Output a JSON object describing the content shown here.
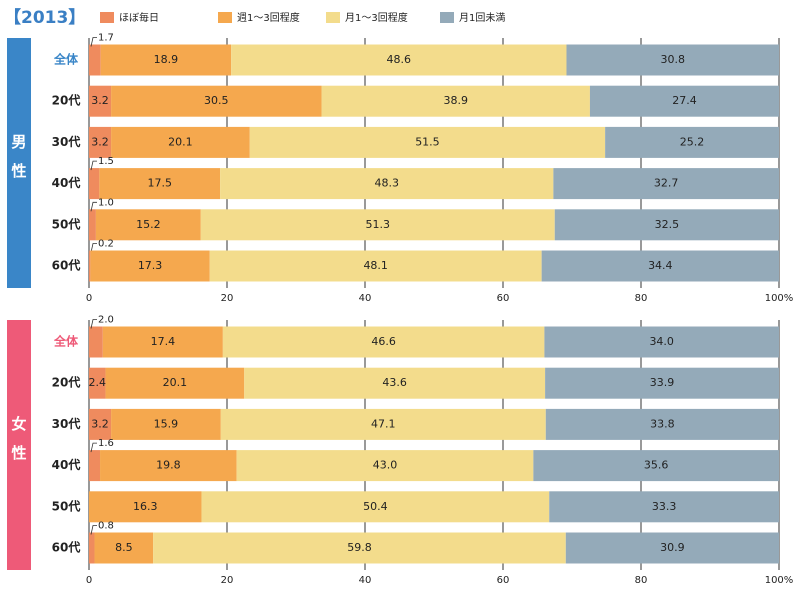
{
  "title": "【2013】",
  "chart_data": [
    {
      "type": "stacked-bar",
      "group_label": "男性",
      "accent_color": "#3a86c8",
      "categories": [
        "全体",
        "20代",
        "30代",
        "40代",
        "50代",
        "60代"
      ],
      "series": [
        {
          "name": "ほぼ毎日",
          "color": "#ef8b5e",
          "values": [
            1.7,
            3.2,
            3.2,
            1.5,
            1.0,
            0.2
          ],
          "value_labels": [
            "1.7",
            "3.2",
            "3.2",
            "1.5",
            "1.0",
            "0.2"
          ]
        },
        {
          "name": "週1～3回程度",
          "color": "#f5a84e",
          "values": [
            18.9,
            30.5,
            20.1,
            17.5,
            15.2,
            17.3
          ],
          "value_labels": [
            "18.9",
            "30.5",
            "20.1",
            "17.5",
            "15.2",
            "17.3"
          ]
        },
        {
          "name": "月1～3回程度",
          "color": "#f3dc8c",
          "values": [
            48.6,
            38.9,
            51.5,
            48.3,
            51.3,
            48.1
          ],
          "value_labels": [
            "48.6",
            "38.9",
            "51.5",
            "48.3",
            "51.3",
            "48.1"
          ]
        },
        {
          "name": "月1回未満",
          "color": "#94aab9",
          "values": [
            30.8,
            27.4,
            25.2,
            32.7,
            32.5,
            34.4
          ],
          "value_labels": [
            "30.8",
            "27.4",
            "25.2",
            "32.7",
            "32.5",
            "34.4"
          ]
        }
      ],
      "xlim": [
        0,
        100
      ],
      "xticks": [
        0,
        20,
        40,
        60,
        80,
        {
          "value": 100,
          "label": "100%"
        }
      ],
      "grid": true
    },
    {
      "type": "stacked-bar",
      "group_label": "女性",
      "accent_color": "#ee5a78",
      "categories": [
        "全体",
        "20代",
        "30代",
        "40代",
        "50代",
        "60代"
      ],
      "series": [
        {
          "color": "#ef8b5e",
          "values": [
            2.0,
            2.4,
            3.2,
            1.6,
            0,
            0.8
          ],
          "value_labels": [
            "2.0",
            "2.4",
            "3.2",
            "1.6",
            null,
            "0.8"
          ]
        },
        {
          "color": "#f5a84e",
          "values": [
            17.4,
            20.1,
            15.9,
            19.8,
            16.3,
            8.5
          ],
          "value_labels": [
            "17.4",
            "20.1",
            "15.9",
            "19.8",
            "16.3",
            "8.5"
          ]
        },
        {
          "color": "#f3dc8c",
          "values": [
            46.6,
            43.6,
            47.1,
            43.0,
            50.4,
            59.8
          ],
          "value_labels": [
            "46.6",
            "43.6",
            "47.1",
            "43.0",
            "50.4",
            "59.8"
          ]
        },
        {
          "color": "#94aab9",
          "values": [
            34.0,
            33.9,
            33.8,
            35.6,
            33.3,
            30.9
          ],
          "value_labels": [
            "34.0",
            "33.9",
            "33.8",
            "35.6",
            "33.3",
            "30.9"
          ]
        }
      ],
      "xlim": [
        0,
        100
      ],
      "xticks": [
        0,
        20,
        40,
        60,
        80,
        {
          "value": 100,
          "label": "100%"
        }
      ],
      "grid": true
    }
  ]
}
